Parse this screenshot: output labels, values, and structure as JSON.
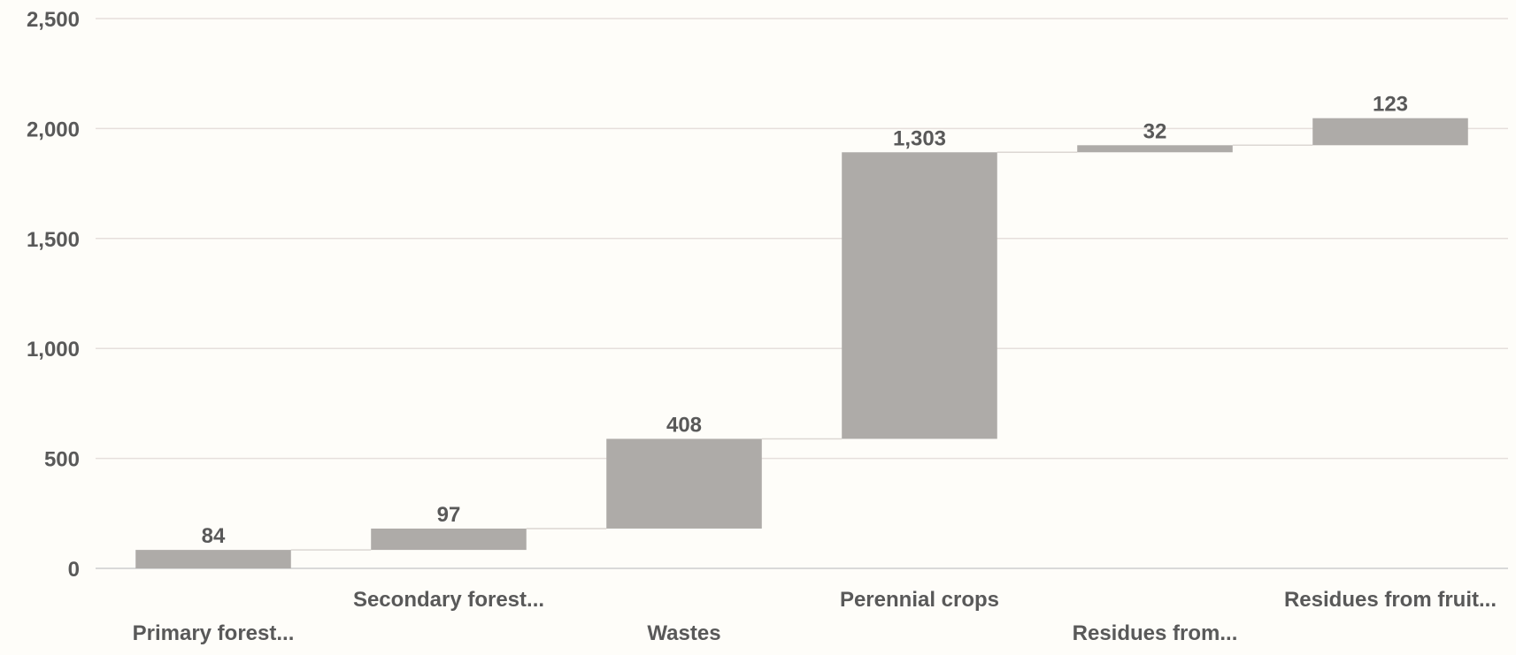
{
  "chart_data": {
    "type": "bar",
    "subtype": "waterfall",
    "title": "",
    "xlabel": "",
    "ylabel": "",
    "ylim": [
      0,
      2500
    ],
    "yticks": [
      0,
      500,
      1000,
      1500,
      2000,
      2500
    ],
    "ytick_labels": [
      "0",
      "500",
      "1,000",
      "1,500",
      "2,000",
      "2,500"
    ],
    "grid": true,
    "legend": "none",
    "categories": [
      "Primary forest...",
      "Secondary forest...",
      "Wastes",
      "Perennial crops",
      "Residues from...",
      "Residues from fruit..."
    ],
    "values": [
      84,
      97,
      408,
      1303,
      32,
      123
    ],
    "data_labels": [
      "84",
      "97",
      "408",
      "1,303",
      "32",
      "123"
    ],
    "colors": {
      "bar": "#aeaba8",
      "grid": "#e6dfdc",
      "axis": "#d9d9d9",
      "connector": "#dcd7d3",
      "text": "#595959",
      "background": "#fefdf9"
    }
  }
}
